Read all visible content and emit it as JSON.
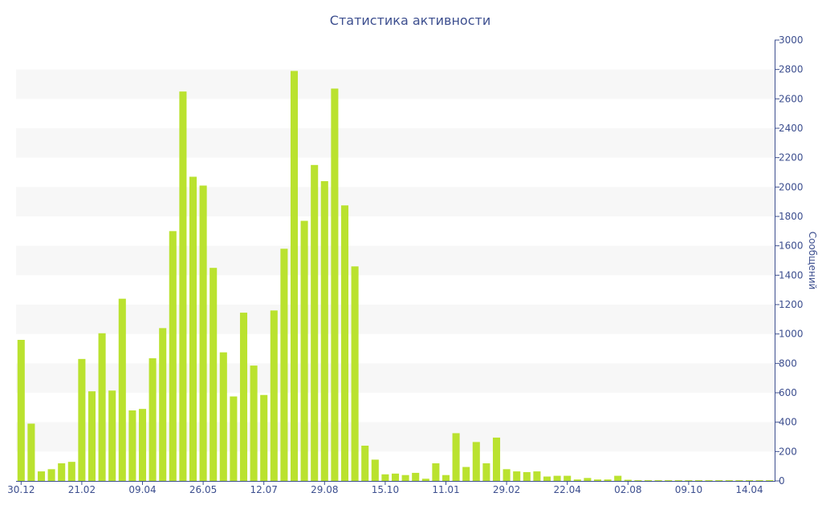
{
  "chart_data": {
    "type": "bar",
    "title": "Статистика активности",
    "ylabel": "Сообщений",
    "xlabel": "",
    "ylim": [
      0,
      3000
    ],
    "y_ticks": [
      0,
      200,
      400,
      600,
      800,
      1000,
      1200,
      1400,
      1600,
      1800,
      2000,
      2200,
      2400,
      2600,
      2800,
      3000
    ],
    "y_axis_position": "right",
    "grid": "alternating horizontal bands",
    "x_tick_labels": [
      {
        "label": "30.12",
        "index": 0
      },
      {
        "label": "21.02",
        "index": 6
      },
      {
        "label": "09.04",
        "index": 12
      },
      {
        "label": "26.05",
        "index": 18
      },
      {
        "label": "12.07",
        "index": 24
      },
      {
        "label": "29.08",
        "index": 30
      },
      {
        "label": "15.10",
        "index": 36
      },
      {
        "label": "11.01",
        "index": 42
      },
      {
        "label": "29.02",
        "index": 48
      },
      {
        "label": "22.04",
        "index": 54
      },
      {
        "label": "02.08",
        "index": 60
      },
      {
        "label": "09.10",
        "index": 66
      },
      {
        "label": "14.04",
        "index": 72
      }
    ],
    "values": [
      960,
      390,
      65,
      80,
      120,
      130,
      830,
      610,
      1005,
      615,
      1240,
      480,
      490,
      835,
      1040,
      1700,
      2650,
      2070,
      2010,
      1450,
      875,
      575,
      1145,
      785,
      585,
      1160,
      1580,
      2790,
      1770,
      2150,
      2040,
      2670,
      1875,
      1460,
      240,
      145,
      45,
      50,
      40,
      55,
      15,
      120,
      40,
      325,
      95,
      265,
      120,
      295,
      80,
      65,
      60,
      65,
      30,
      35,
      35,
      10,
      20,
      10,
      10,
      35,
      8,
      5,
      5,
      5,
      5,
      5,
      5,
      5,
      5,
      5,
      5,
      5,
      5,
      5,
      5
    ],
    "colors": {
      "bar": "#bae22f",
      "text": "#3d4f8f",
      "axis": "#3d4f8f",
      "band": "#f7f7f7"
    }
  }
}
